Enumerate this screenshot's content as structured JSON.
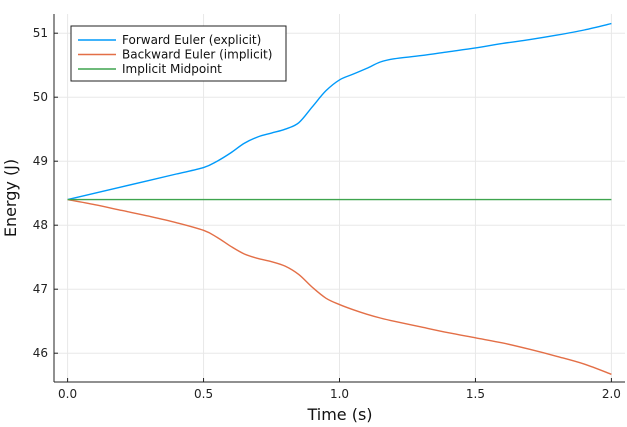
{
  "chart_data": {
    "type": "line",
    "title": "",
    "xlabel": "Time (s)",
    "ylabel": "Energy (J)",
    "xlim": [
      -0.05,
      2.05
    ],
    "ylim": [
      45.55,
      51.3
    ],
    "xticks": [
      0.0,
      0.5,
      1.0,
      1.5,
      2.0
    ],
    "xtick_labels": [
      "0.0",
      "0.5",
      "1.0",
      "1.5",
      "2.0"
    ],
    "yticks": [
      46,
      47,
      48,
      49,
      50,
      51
    ],
    "ytick_labels": [
      "46",
      "47",
      "48",
      "49",
      "50",
      "51"
    ],
    "grid": true,
    "legend_position": "top-left",
    "series": [
      {
        "name": "Forward Euler (explicit)",
        "color": "#009AFA",
        "x": [
          0.0,
          0.1,
          0.2,
          0.3,
          0.4,
          0.5,
          0.55,
          0.6,
          0.65,
          0.7,
          0.75,
          0.8,
          0.85,
          0.9,
          0.95,
          1.0,
          1.05,
          1.1,
          1.15,
          1.2,
          1.3,
          1.4,
          1.5,
          1.6,
          1.7,
          1.8,
          1.9,
          2.0
        ],
        "y": [
          48.4,
          48.5,
          48.6,
          48.7,
          48.8,
          48.9,
          49.0,
          49.13,
          49.28,
          49.38,
          49.44,
          49.5,
          49.6,
          49.85,
          50.1,
          50.27,
          50.36,
          50.45,
          50.55,
          50.6,
          50.65,
          50.71,
          50.77,
          50.84,
          50.9,
          50.97,
          51.05,
          51.15
        ]
      },
      {
        "name": "Backward Euler (implicit)",
        "color": "#E36F47",
        "x": [
          0.0,
          0.1,
          0.2,
          0.3,
          0.4,
          0.5,
          0.55,
          0.6,
          0.65,
          0.7,
          0.75,
          0.8,
          0.85,
          0.9,
          0.95,
          1.0,
          1.05,
          1.1,
          1.15,
          1.2,
          1.3,
          1.4,
          1.5,
          1.6,
          1.7,
          1.8,
          1.9,
          2.0
        ],
        "y": [
          48.4,
          48.32,
          48.23,
          48.14,
          48.04,
          47.92,
          47.81,
          47.67,
          47.55,
          47.48,
          47.43,
          47.36,
          47.23,
          47.03,
          46.86,
          46.76,
          46.68,
          46.61,
          46.55,
          46.5,
          46.41,
          46.32,
          46.24,
          46.16,
          46.06,
          45.95,
          45.83,
          45.67
        ]
      },
      {
        "name": "Implicit Midpoint",
        "color": "#3EA44E",
        "x": [
          0.0,
          0.5,
          1.0,
          1.5,
          2.0
        ],
        "y": [
          48.4,
          48.4,
          48.4,
          48.4,
          48.4
        ]
      }
    ]
  }
}
